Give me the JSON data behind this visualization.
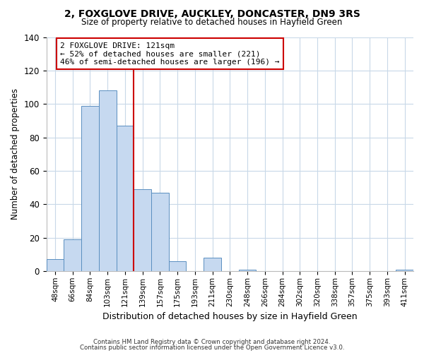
{
  "title": "2, FOXGLOVE DRIVE, AUCKLEY, DONCASTER, DN9 3RS",
  "subtitle": "Size of property relative to detached houses in Hayfield Green",
  "xlabel": "Distribution of detached houses by size in Hayfield Green",
  "ylabel": "Number of detached properties",
  "footnote1": "Contains HM Land Registry data © Crown copyright and database right 2024.",
  "footnote2": "Contains public sector information licensed under the Open Government Licence v3.0.",
  "bin_labels": [
    "48sqm",
    "66sqm",
    "84sqm",
    "103sqm",
    "121sqm",
    "139sqm",
    "157sqm",
    "175sqm",
    "193sqm",
    "211sqm",
    "230sqm",
    "248sqm",
    "266sqm",
    "284sqm",
    "302sqm",
    "320sqm",
    "338sqm",
    "357sqm",
    "375sqm",
    "393sqm",
    "411sqm"
  ],
  "bar_values": [
    7,
    19,
    99,
    108,
    87,
    49,
    47,
    6,
    0,
    8,
    0,
    1,
    0,
    0,
    0,
    0,
    0,
    0,
    0,
    0,
    1
  ],
  "highlight_index": 4,
  "bar_color": "#c6d9f0",
  "bar_edge_color": "#5a8fc0",
  "highlight_line_color": "#cc0000",
  "ylim": [
    0,
    140
  ],
  "yticks": [
    0,
    20,
    40,
    60,
    80,
    100,
    120,
    140
  ],
  "annotation_line1": "2 FOXGLOVE DRIVE: 121sqm",
  "annotation_line2": "← 52% of detached houses are smaller (221)",
  "annotation_line3": "46% of semi-detached houses are larger (196) →",
  "annotation_box_color": "#ffffff",
  "annotation_border_color": "#cc0000",
  "background_color": "#ffffff",
  "grid_color": "#c8d8e8"
}
